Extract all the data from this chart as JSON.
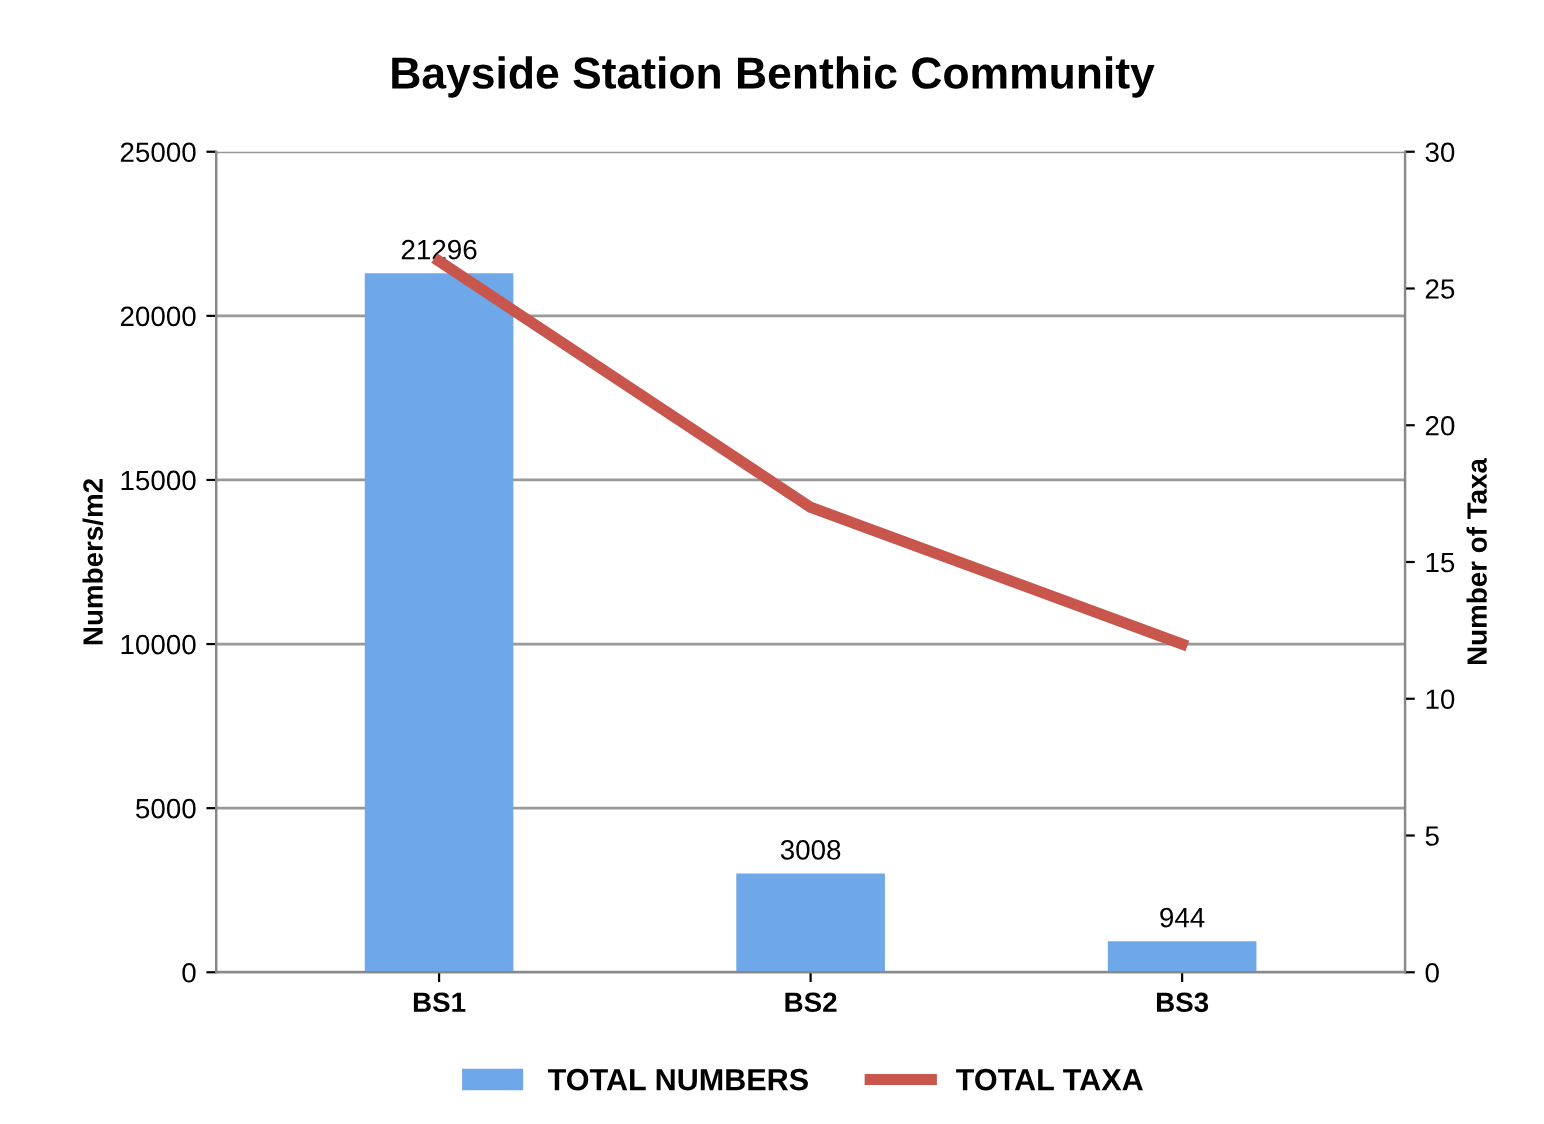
{
  "chart_data": {
    "type": "bar",
    "title": "Bayside Station Benthic Community",
    "ylabel": "Numbers/m2",
    "y2label": "Number of Taxa",
    "categories": [
      "BS1",
      "BS2",
      "BS3"
    ],
    "series": [
      {
        "name": "TOTAL NUMBERS",
        "color": "#6fa8e8",
        "values": [
          21296,
          3008,
          944
        ],
        "value_labels": [
          "21296",
          "3008",
          "944"
        ]
      },
      {
        "name": "TOTAL TAXA",
        "type": "line",
        "axis": "y2",
        "color": "#c8564d",
        "values": [
          26,
          17,
          12
        ]
      }
    ],
    "ylim": [
      0,
      25000
    ],
    "yticks": [
      0,
      5000,
      10000,
      15000,
      20000,
      25000
    ],
    "y2lim": [
      0,
      30
    ],
    "y2ticks": [
      0,
      5,
      10,
      15,
      20,
      25,
      30
    ],
    "grid": "y",
    "legend": "bottom",
    "marker": "none",
    "line_style": "solid"
  }
}
